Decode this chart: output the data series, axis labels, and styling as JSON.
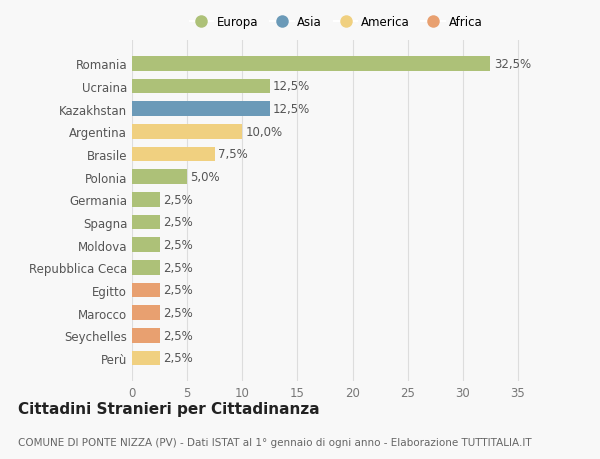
{
  "countries": [
    "Romania",
    "Ucraina",
    "Kazakhstan",
    "Argentina",
    "Brasile",
    "Polonia",
    "Germania",
    "Spagna",
    "Moldova",
    "Repubblica Ceca",
    "Egitto",
    "Marocco",
    "Seychelles",
    "Perù"
  ],
  "values": [
    32.5,
    12.5,
    12.5,
    10.0,
    7.5,
    5.0,
    2.5,
    2.5,
    2.5,
    2.5,
    2.5,
    2.5,
    2.5,
    2.5
  ],
  "continents": [
    "Europa",
    "Europa",
    "Asia",
    "America",
    "America",
    "Europa",
    "Europa",
    "Europa",
    "Europa",
    "Europa",
    "Africa",
    "Africa",
    "Africa",
    "America"
  ],
  "colors": {
    "Europa": "#adc178",
    "Asia": "#6b9ab8",
    "America": "#f0d080",
    "Africa": "#e8a070"
  },
  "labels": [
    "32,5%",
    "12,5%",
    "12,5%",
    "10,0%",
    "7,5%",
    "5,0%",
    "2,5%",
    "2,5%",
    "2,5%",
    "2,5%",
    "2,5%",
    "2,5%",
    "2,5%",
    "2,5%"
  ],
  "xlim": [
    0,
    37
  ],
  "xticks": [
    0,
    5,
    10,
    15,
    20,
    25,
    30,
    35
  ],
  "title": "Cittadini Stranieri per Cittadinanza",
  "subtitle": "COMUNE DI PONTE NIZZA (PV) - Dati ISTAT al 1° gennaio di ogni anno - Elaborazione TUTTITALIA.IT",
  "legend_order": [
    "Europa",
    "Asia",
    "America",
    "Africa"
  ],
  "bg_color": "#f8f8f8",
  "grid_color": "#dddddd",
  "bar_height": 0.65,
  "label_fontsize": 8.5,
  "tick_fontsize": 8.5,
  "title_fontsize": 11,
  "subtitle_fontsize": 7.5
}
